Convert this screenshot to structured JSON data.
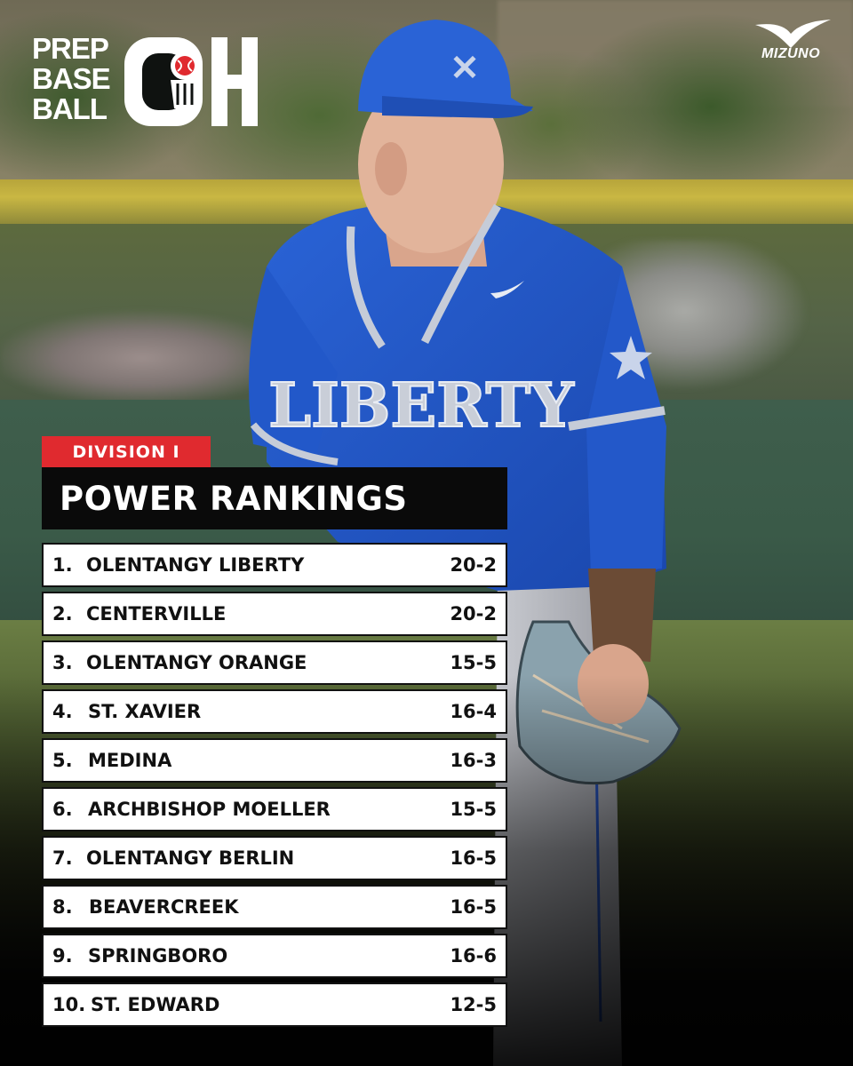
{
  "branding": {
    "logo_lines": [
      "PREP",
      "BASE",
      "BALL"
    ],
    "logo_mark": "OH",
    "sponsor": "MIZUNO"
  },
  "panel": {
    "division": "DIVISION I",
    "title": "POWER RANKINGS"
  },
  "rankings": [
    {
      "rank": "1.",
      "team": "OLENTANGY LIBERTY",
      "record": "20-2"
    },
    {
      "rank": "2.",
      "team": "CENTERVILLE",
      "record": "20-2"
    },
    {
      "rank": "3.",
      "team": "OLENTANGY ORANGE",
      "record": "15-5"
    },
    {
      "rank": "4.",
      "team": "ST. XAVIER",
      "record": "16-4"
    },
    {
      "rank": "5.",
      "team": "MEDINA",
      "record": "16-3"
    },
    {
      "rank": "6.",
      "team": "ARCHBISHOP MOELLER",
      "record": "15-5"
    },
    {
      "rank": "7.",
      "team": "OLENTANGY BERLIN",
      "record": "16-5"
    },
    {
      "rank": "8.",
      "team": "BEAVERCREEK",
      "record": "16-5"
    },
    {
      "rank": "9.",
      "team": "SPRINGBORO",
      "record": "16-6"
    },
    {
      "rank": "10.",
      "team": "ST. EDWARD",
      "record": "12-5"
    }
  ],
  "jersey_text": "LIBERTY",
  "colors": {
    "accent_red": "#e02a2f",
    "title_black": "#0a0a0a",
    "row_white": "#ffffff",
    "jersey_blue": "#1f57c7"
  }
}
